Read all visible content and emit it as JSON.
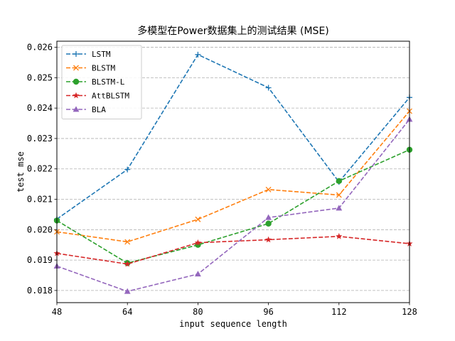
{
  "chart_data": {
    "type": "line",
    "title": "多模型在Power数据集上的测试结果 (MSE)",
    "xlabel": "input sequence length",
    "ylabel": "test mse",
    "x": [
      48,
      64,
      80,
      96,
      112,
      128
    ],
    "x_ticks": [
      "48",
      "64",
      "80",
      "96",
      "112",
      "128"
    ],
    "xlim": [
      48,
      128
    ],
    "ylim": [
      0.0176,
      0.0262
    ],
    "y_ticks": [
      "0.018",
      "0.019",
      "0.020",
      "0.021",
      "0.022",
      "0.023",
      "0.024",
      "0.025",
      "0.026"
    ],
    "y_tick_values": [
      0.018,
      0.019,
      0.02,
      0.021,
      0.022,
      0.023,
      0.024,
      0.025,
      0.026
    ],
    "grid": "horizontal dashed",
    "legend_position": "top-left",
    "series": [
      {
        "name": "LSTM",
        "color": "#1f77b4",
        "marker": "plus",
        "values": [
          0.02035,
          0.02198,
          0.02576,
          0.02467,
          0.02157,
          0.02435
        ]
      },
      {
        "name": "BLSTM",
        "color": "#ff7f0e",
        "marker": "x",
        "values": [
          0.01993,
          0.0196,
          0.02034,
          0.02132,
          0.02114,
          0.0239
        ]
      },
      {
        "name": "BLSTM-L",
        "color": "#2ca02c",
        "marker": "circle",
        "values": [
          0.0203,
          0.0189,
          0.0195,
          0.0202,
          0.0216,
          0.02263
        ]
      },
      {
        "name": "AttBLSTM",
        "color": "#d62728",
        "marker": "star",
        "values": [
          0.01922,
          0.01887,
          0.01957,
          0.01967,
          0.01978,
          0.01954
        ]
      },
      {
        "name": "BLA",
        "color": "#9467bd",
        "marker": "triangle",
        "values": [
          0.0188,
          0.01797,
          0.01854,
          0.0204,
          0.02071,
          0.02363
        ]
      }
    ]
  }
}
